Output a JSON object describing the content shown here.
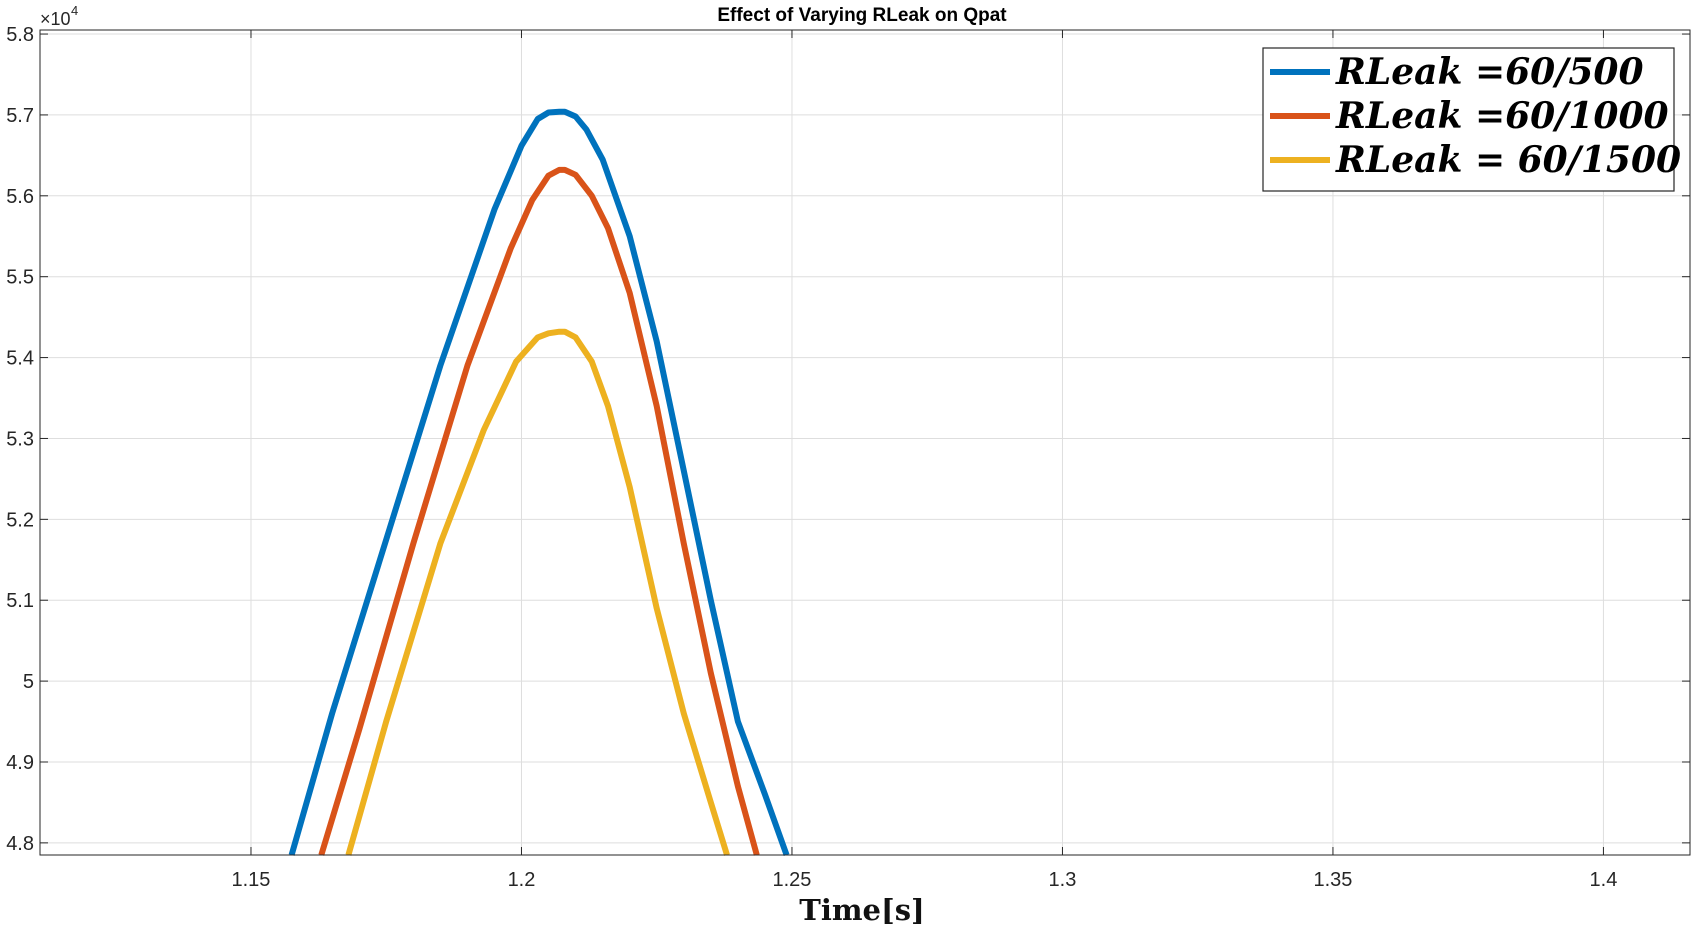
{
  "chart_data": {
    "type": "line",
    "title": "Effect of Varying RLeak on Qpat",
    "xlabel": "Time[s]",
    "ylabel": "",
    "xlim": [
      1.111,
      1.416
    ],
    "ylim": [
      47850,
      58050
    ],
    "x_ticks": [
      1.15,
      1.2,
      1.25,
      1.3,
      1.35,
      1.4
    ],
    "x_tick_labels": [
      "1.15",
      "1.2",
      "1.25",
      "1.3",
      "1.35",
      "1.4"
    ],
    "y_ticks": [
      48000,
      49000,
      50000,
      51000,
      52000,
      53000,
      54000,
      55000,
      56000,
      57000,
      58000
    ],
    "y_tick_labels": [
      "4.8",
      "4.9",
      "5",
      "5.1",
      "5.2",
      "5.3",
      "5.4",
      "5.5",
      "5.6",
      "5.7",
      "5.8"
    ],
    "y_multiplier": {
      "base": "×10",
      "exponent": "4"
    },
    "grid": true,
    "legend_position": "top-right",
    "series": [
      {
        "name": "RLeak =60/500",
        "color": "#0072BD",
        "x": [
          1.1575,
          1.165,
          1.175,
          1.185,
          1.195,
          1.2,
          1.203,
          1.205,
          1.207,
          1.208,
          1.21,
          1.212,
          1.215,
          1.22,
          1.225,
          1.23,
          1.235,
          1.24,
          1.245,
          1.249
        ],
        "y": [
          47850,
          49600,
          51750,
          53900,
          55830,
          56620,
          56950,
          57030,
          57040,
          57040,
          56980,
          56820,
          56450,
          55500,
          54200,
          52600,
          51000,
          49500,
          48600,
          47850
        ]
      },
      {
        "name": "RLeak =60/1000",
        "color": "#D95319",
        "x": [
          1.163,
          1.17,
          1.18,
          1.19,
          1.198,
          1.202,
          1.205,
          1.207,
          1.208,
          1.21,
          1.213,
          1.216,
          1.22,
          1.225,
          1.23,
          1.235,
          1.24,
          1.2435
        ],
        "y": [
          47850,
          49400,
          51700,
          53900,
          55350,
          55950,
          56250,
          56320,
          56320,
          56260,
          56000,
          55600,
          54800,
          53400,
          51700,
          50100,
          48700,
          47850
        ]
      },
      {
        "name": "RLeak = 60/1500",
        "color": "#EDB120",
        "x": [
          1.168,
          1.175,
          1.185,
          1.193,
          1.199,
          1.203,
          1.205,
          1.207,
          1.208,
          1.21,
          1.213,
          1.216,
          1.22,
          1.225,
          1.23,
          1.235,
          1.238
        ],
        "y": [
          47850,
          49500,
          51700,
          53100,
          53950,
          54250,
          54300,
          54320,
          54320,
          54250,
          53950,
          53400,
          52400,
          50900,
          49600,
          48500,
          47850
        ]
      }
    ]
  }
}
